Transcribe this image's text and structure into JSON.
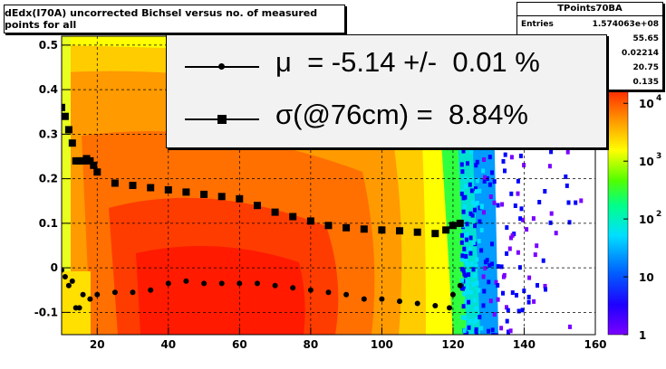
{
  "chart_data": {
    "type": "heatmap",
    "title": "dEdx(I70A) uncorrected Bichsel versus no. of measured points for all",
    "xlim": [
      10,
      160
    ],
    "ylim": [
      -0.15,
      0.52
    ],
    "x_ticks": [
      "20",
      "40",
      "60",
      "80",
      "100",
      "120",
      "140",
      "160"
    ],
    "y_ticks": [
      "-0.1",
      "0",
      "0.1",
      "0.2",
      "0.3",
      "0.4",
      "0.5"
    ],
    "grid": true,
    "colorbar": {
      "scale": "log",
      "range": [
        1,
        20000
      ],
      "tick_labels": [
        "1",
        "10",
        "10",
        "10",
        "10"
      ],
      "tick_exponents": [
        "",
        "",
        "2",
        "3",
        "4"
      ]
    },
    "series": [
      {
        "name": "sigma",
        "x": [
          10,
          11,
          12,
          13,
          14,
          15,
          16,
          17,
          18,
          19,
          20,
          25,
          30,
          35,
          40,
          45,
          50,
          55,
          60,
          65,
          70,
          75,
          80,
          85,
          90,
          95,
          100,
          105,
          110,
          115,
          118,
          120,
          122
        ],
        "y": [
          0.36,
          0.34,
          0.31,
          0.28,
          0.24,
          0.24,
          0.24,
          0.245,
          0.24,
          0.23,
          0.215,
          0.19,
          0.185,
          0.18,
          0.175,
          0.17,
          0.165,
          0.16,
          0.155,
          0.14,
          0.125,
          0.115,
          0.105,
          0.095,
          0.09,
          0.087,
          0.085,
          0.083,
          0.08,
          0.077,
          0.085,
          0.095,
          0.1
        ]
      },
      {
        "name": "mu",
        "x": [
          10,
          11,
          12,
          13,
          14,
          15,
          16,
          18,
          20,
          25,
          30,
          35,
          40,
          45,
          50,
          55,
          60,
          65,
          70,
          75,
          80,
          85,
          90,
          95,
          100,
          105,
          110,
          115,
          119,
          120,
          122
        ],
        "y": [
          -0.005,
          -0.02,
          -0.04,
          -0.03,
          -0.09,
          -0.09,
          -0.06,
          -0.07,
          -0.06,
          -0.055,
          -0.055,
          -0.05,
          -0.035,
          -0.03,
          -0.035,
          -0.035,
          -0.035,
          -0.035,
          -0.04,
          -0.045,
          -0.05,
          -0.055,
          -0.06,
          -0.07,
          -0.07,
          -0.075,
          -0.08,
          -0.085,
          -0.09,
          -0.06,
          -0.04
        ]
      }
    ]
  },
  "stats": {
    "title": "TPoints70BA",
    "entries_label": "Entries",
    "entries_value": "1.574063e+08",
    "values": [
      "55.65",
      "0.02214",
      "20.75",
      "0.135"
    ]
  },
  "legend": {
    "mu_text": "μ  = -5.14 +/-  0.01 %",
    "sigma_text": "σ(@76cm) =  8.84%"
  },
  "colors": {
    "red": "#ff1a00",
    "orange": "#ff7b00",
    "yellow": "#ffff00",
    "green": "#52ff00",
    "cyan": "#00e0ff",
    "blue": "#0000ff",
    "violet": "#7a00ff"
  }
}
